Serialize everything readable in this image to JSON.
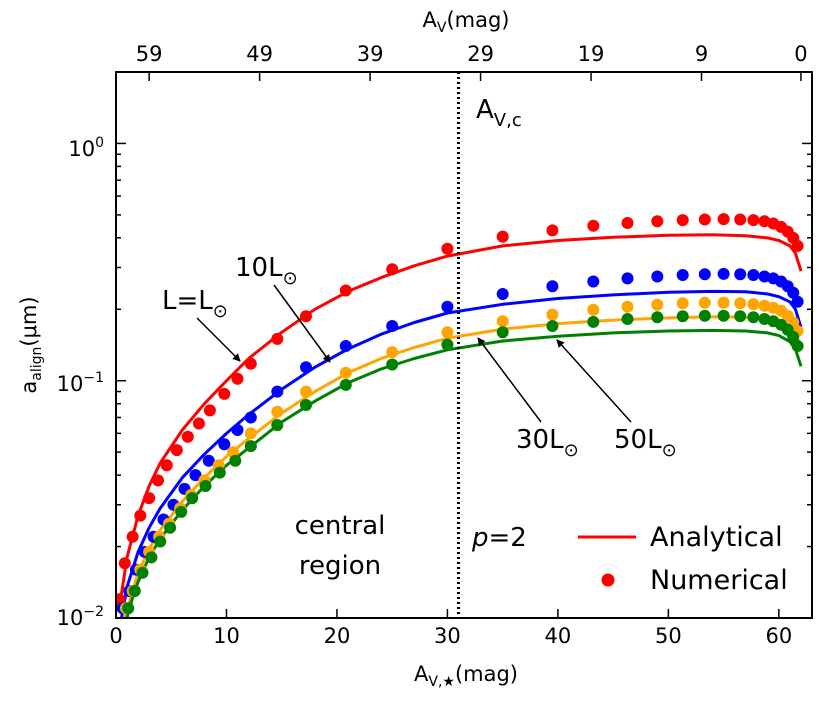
{
  "chart_data": {
    "type": "line",
    "x_axis": {
      "label": "A",
      "label_sub": "V,★",
      "label_unit": "(mag)",
      "range": [
        0,
        63
      ],
      "ticks": [
        0,
        10,
        20,
        30,
        40,
        50,
        60
      ]
    },
    "top_axis": {
      "label": "A",
      "label_sub": "V",
      "label_unit": "(mag)",
      "ticks": [
        59,
        49,
        39,
        29,
        19,
        9,
        0
      ],
      "note": "A_V = 62 - A_V,star"
    },
    "y_axis": {
      "label": "a",
      "label_sub": "align",
      "label_unit": "(μm)",
      "scale": "log",
      "range": [
        0.01,
        2.0
      ],
      "ticks": [
        {
          "value": 0.01,
          "base": "10",
          "exp": "−2"
        },
        {
          "value": 0.1,
          "base": "10",
          "exp": "−1"
        },
        {
          "value": 1,
          "base": "10",
          "exp": "0"
        }
      ]
    },
    "vline": {
      "x": 31,
      "label": "A",
      "label_sub": "V,c"
    },
    "annotations": {
      "region_line1": "central",
      "region_line2": "region",
      "param_p": "p",
      "param_eq": "=2",
      "sun_symbol": "⊙",
      "lum_labels": [
        {
          "text": "L=L",
          "series": "L=Lsun"
        },
        {
          "text": "10L",
          "series": "10Lsun"
        },
        {
          "text": "30L",
          "series": "30Lsun"
        },
        {
          "text": "50L",
          "series": "50Lsun"
        }
      ]
    },
    "legend": {
      "position": "bottom-right",
      "analytical": "Analytical",
      "numerical": "Numerical"
    },
    "series": [
      {
        "name": "L=Lsun",
        "color": "#ff0000",
        "analytical": {
          "x": [
            0.3,
            1,
            2,
            3,
            4,
            6,
            8,
            10,
            12,
            15,
            18,
            21,
            24,
            27,
            30,
            35,
            40,
            45,
            50,
            54,
            57,
            59,
            60,
            61,
            61.5,
            62
          ],
          "y": [
            0.011,
            0.018,
            0.027,
            0.036,
            0.045,
            0.062,
            0.08,
            0.1,
            0.124,
            0.16,
            0.2,
            0.238,
            0.272,
            0.305,
            0.335,
            0.37,
            0.39,
            0.402,
            0.41,
            0.412,
            0.408,
            0.4,
            0.39,
            0.37,
            0.345,
            0.29
          ]
        },
        "numerical": {
          "x": [
            0.3,
            0.8,
            1.5,
            2.2,
            3,
            3.8,
            4.6,
            5.5,
            6.5,
            7.5,
            8.5,
            9.8,
            11,
            12.2,
            14.6,
            17.2,
            20.8,
            25,
            30,
            35,
            39.5,
            43.2,
            46.3,
            49,
            51.3,
            53.3,
            55,
            56.5,
            57.7,
            58.7,
            59.5,
            60.2,
            60.8,
            61.3,
            61.7
          ],
          "y": [
            0.012,
            0.017,
            0.022,
            0.027,
            0.032,
            0.038,
            0.044,
            0.051,
            0.058,
            0.066,
            0.075,
            0.088,
            0.102,
            0.118,
            0.15,
            0.187,
            0.24,
            0.295,
            0.36,
            0.405,
            0.43,
            0.45,
            0.462,
            0.47,
            0.475,
            0.478,
            0.48,
            0.478,
            0.475,
            0.47,
            0.46,
            0.445,
            0.425,
            0.4,
            0.37
          ]
        }
      },
      {
        "name": "10Lsun",
        "color": "#0000ff",
        "analytical": {
          "x": [
            0.5,
            1,
            2,
            3,
            4,
            6,
            8,
            10,
            12,
            15,
            18,
            21,
            24,
            27,
            30,
            35,
            40,
            45,
            50,
            54,
            57,
            59,
            60,
            61,
            61.5,
            62
          ],
          "y": [
            0.01,
            0.0135,
            0.019,
            0.024,
            0.029,
            0.039,
            0.049,
            0.06,
            0.072,
            0.092,
            0.114,
            0.136,
            0.157,
            0.176,
            0.193,
            0.21,
            0.222,
            0.23,
            0.236,
            0.238,
            0.237,
            0.232,
            0.226,
            0.215,
            0.2,
            0.168
          ]
        },
        "numerical": {
          "x": [
            0.6,
            1.2,
            1.8,
            2.6,
            3.4,
            4.3,
            5.2,
            6.2,
            7.2,
            8.4,
            9.8,
            11,
            12.2,
            14.6,
            17.2,
            20.8,
            25,
            30,
            35,
            39.5,
            43.2,
            46.3,
            49,
            51.3,
            53.3,
            55,
            56.5,
            57.7,
            58.7,
            59.5,
            60.2,
            60.8,
            61.3,
            61.7
          ],
          "y": [
            0.011,
            0.013,
            0.016,
            0.019,
            0.022,
            0.026,
            0.03,
            0.035,
            0.04,
            0.046,
            0.054,
            0.062,
            0.07,
            0.09,
            0.114,
            0.14,
            0.17,
            0.205,
            0.232,
            0.25,
            0.262,
            0.27,
            0.275,
            0.279,
            0.281,
            0.282,
            0.281,
            0.279,
            0.275,
            0.27,
            0.262,
            0.25,
            0.235,
            0.215
          ]
        }
      },
      {
        "name": "30Lsun",
        "color": "#ffa500",
        "analytical": {
          "x": [
            0.8,
            1.5,
            2,
            3,
            4,
            6,
            8,
            10,
            12,
            15,
            18,
            21,
            24,
            27,
            30,
            35,
            40,
            45,
            50,
            54,
            57,
            59,
            60,
            61,
            61.5,
            62
          ],
          "y": [
            0.01,
            0.013,
            0.0155,
            0.0195,
            0.0235,
            0.031,
            0.039,
            0.048,
            0.057,
            0.073,
            0.09,
            0.108,
            0.124,
            0.138,
            0.151,
            0.165,
            0.174,
            0.18,
            0.184,
            0.186,
            0.185,
            0.182,
            0.178,
            0.17,
            0.16,
            0.138
          ]
        },
        "numerical": {
          "x": [
            0.9,
            1.5,
            2.2,
            3,
            3.9,
            4.8,
            5.8,
            6.8,
            8,
            9.3,
            10.6,
            12.2,
            14.6,
            17.2,
            20.8,
            25,
            30,
            35,
            39.5,
            43.2,
            46.3,
            49,
            51.3,
            53.3,
            55,
            56.5,
            57.7,
            58.7,
            59.5,
            60.2,
            60.8,
            61.3,
            61.7
          ],
          "y": [
            0.011,
            0.013,
            0.016,
            0.019,
            0.022,
            0.025,
            0.029,
            0.033,
            0.038,
            0.044,
            0.05,
            0.06,
            0.074,
            0.09,
            0.108,
            0.132,
            0.16,
            0.178,
            0.19,
            0.199,
            0.205,
            0.209,
            0.212,
            0.213,
            0.213,
            0.212,
            0.21,
            0.207,
            0.203,
            0.197,
            0.188,
            0.176,
            0.162
          ]
        }
      },
      {
        "name": "50Lsun",
        "color": "#008000",
        "analytical": {
          "x": [
            1,
            1.5,
            2,
            3,
            4,
            6,
            8,
            10,
            12,
            15,
            18,
            21,
            24,
            27,
            30,
            35,
            40,
            45,
            50,
            54,
            57,
            59,
            60,
            61,
            61.5,
            62
          ],
          "y": [
            0.01,
            0.0122,
            0.0142,
            0.018,
            0.0216,
            0.0285,
            0.036,
            0.044,
            0.052,
            0.067,
            0.082,
            0.098,
            0.112,
            0.124,
            0.135,
            0.147,
            0.154,
            0.159,
            0.162,
            0.163,
            0.162,
            0.159,
            0.155,
            0.146,
            0.136,
            0.115
          ]
        },
        "numerical": {
          "x": [
            1.1,
            1.7,
            2.4,
            3.2,
            4,
            4.9,
            5.9,
            6.9,
            8.1,
            9.4,
            10.8,
            12.2,
            14.6,
            17.2,
            20.8,
            25,
            30,
            35,
            39.5,
            43.2,
            46.3,
            49,
            51.3,
            53.3,
            55,
            56.5,
            57.7,
            58.7,
            59.5,
            60.2,
            60.8,
            61.3,
            61.7
          ],
          "y": [
            0.011,
            0.013,
            0.0155,
            0.018,
            0.021,
            0.024,
            0.028,
            0.032,
            0.036,
            0.041,
            0.046,
            0.053,
            0.065,
            0.079,
            0.096,
            0.117,
            0.142,
            0.16,
            0.17,
            0.177,
            0.182,
            0.185,
            0.187,
            0.188,
            0.188,
            0.187,
            0.185,
            0.182,
            0.178,
            0.172,
            0.164,
            0.153,
            0.14
          ]
        }
      }
    ]
  }
}
